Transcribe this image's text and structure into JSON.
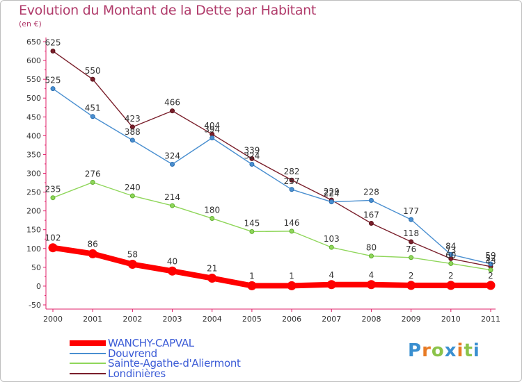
{
  "header": {
    "title": "Evolution du Montant de la Dette par Habitant",
    "subtitle": "(en €)"
  },
  "brand": {
    "letters": [
      "P",
      "r",
      "o",
      "x",
      "i",
      "t",
      "i"
    ],
    "colors": [
      "#3a8fd0",
      "#e87b25",
      "#8bc34a",
      "#3a8fd0",
      "#e87b25",
      "#8bc34a",
      "#3a8fd0"
    ]
  },
  "chart_data": {
    "type": "line",
    "title": "Evolution du Montant de la Dette par Habitant",
    "ylabel": "(en €)",
    "xlabel": "",
    "x": [
      "2000",
      "2001",
      "2002",
      "2003",
      "2004",
      "2005",
      "2006",
      "2007",
      "2008",
      "2009",
      "2010",
      "2011"
    ],
    "ylim": [
      -50,
      650
    ],
    "yticks": [
      "650",
      "600",
      "550",
      "500",
      "450",
      "400",
      "350",
      "300",
      "250",
      "200",
      "150",
      "100",
      "50",
      "0",
      "-50"
    ],
    "grid": false,
    "legend": "bottom-left",
    "series": [
      {
        "name": "Londinières",
        "color": "#7a1f2b",
        "values": [
          625,
          550,
          423,
          466,
          404,
          339,
          282,
          229,
          167,
          118,
          73,
          52
        ],
        "labels": [
          "625",
          "550",
          "423",
          "466",
          "404",
          "339",
          "282",
          "229",
          "167",
          "118",
          "73",
          "52"
        ]
      },
      {
        "name": "Douvrend",
        "color": "#4a8fd0",
        "values": [
          525,
          451,
          388,
          324,
          394,
          324,
          257,
          224,
          228,
          177,
          84,
          59
        ],
        "labels": [
          "525",
          "451",
          "388",
          "324",
          "394",
          "324",
          "257",
          "224",
          "228",
          "177",
          "84",
          "59"
        ]
      },
      {
        "name": "Sainte-Agathe-d'Aliermont",
        "color": "#8fd65a",
        "values": [
          235,
          276,
          240,
          214,
          180,
          145,
          146,
          103,
          80,
          76,
          60,
          43
        ],
        "labels": [
          "235",
          "276",
          "240",
          "214",
          "180",
          "145",
          "146",
          "103",
          "80",
          "76",
          "60",
          "43"
        ]
      },
      {
        "name": "WANCHY-CAPVAL",
        "color": "#ff0000",
        "values": [
          102,
          86,
          58,
          40,
          21,
          1,
          1,
          4,
          4,
          2,
          2,
          2
        ],
        "labels": [
          "102",
          "86",
          "58",
          "40",
          "21",
          "1",
          "1",
          "4",
          "4",
          "2",
          "2",
          "2"
        ]
      }
    ]
  },
  "legend": {
    "items": [
      {
        "label": "WANCHY-CAPVAL",
        "color": "#ff0000"
      },
      {
        "label": "Douvrend",
        "color": "#4a8fd0"
      },
      {
        "label": "Sainte-Agathe-d'Aliermont",
        "color": "#8fd65a"
      },
      {
        "label": "Londinières",
        "color": "#7a1f2b"
      }
    ]
  }
}
